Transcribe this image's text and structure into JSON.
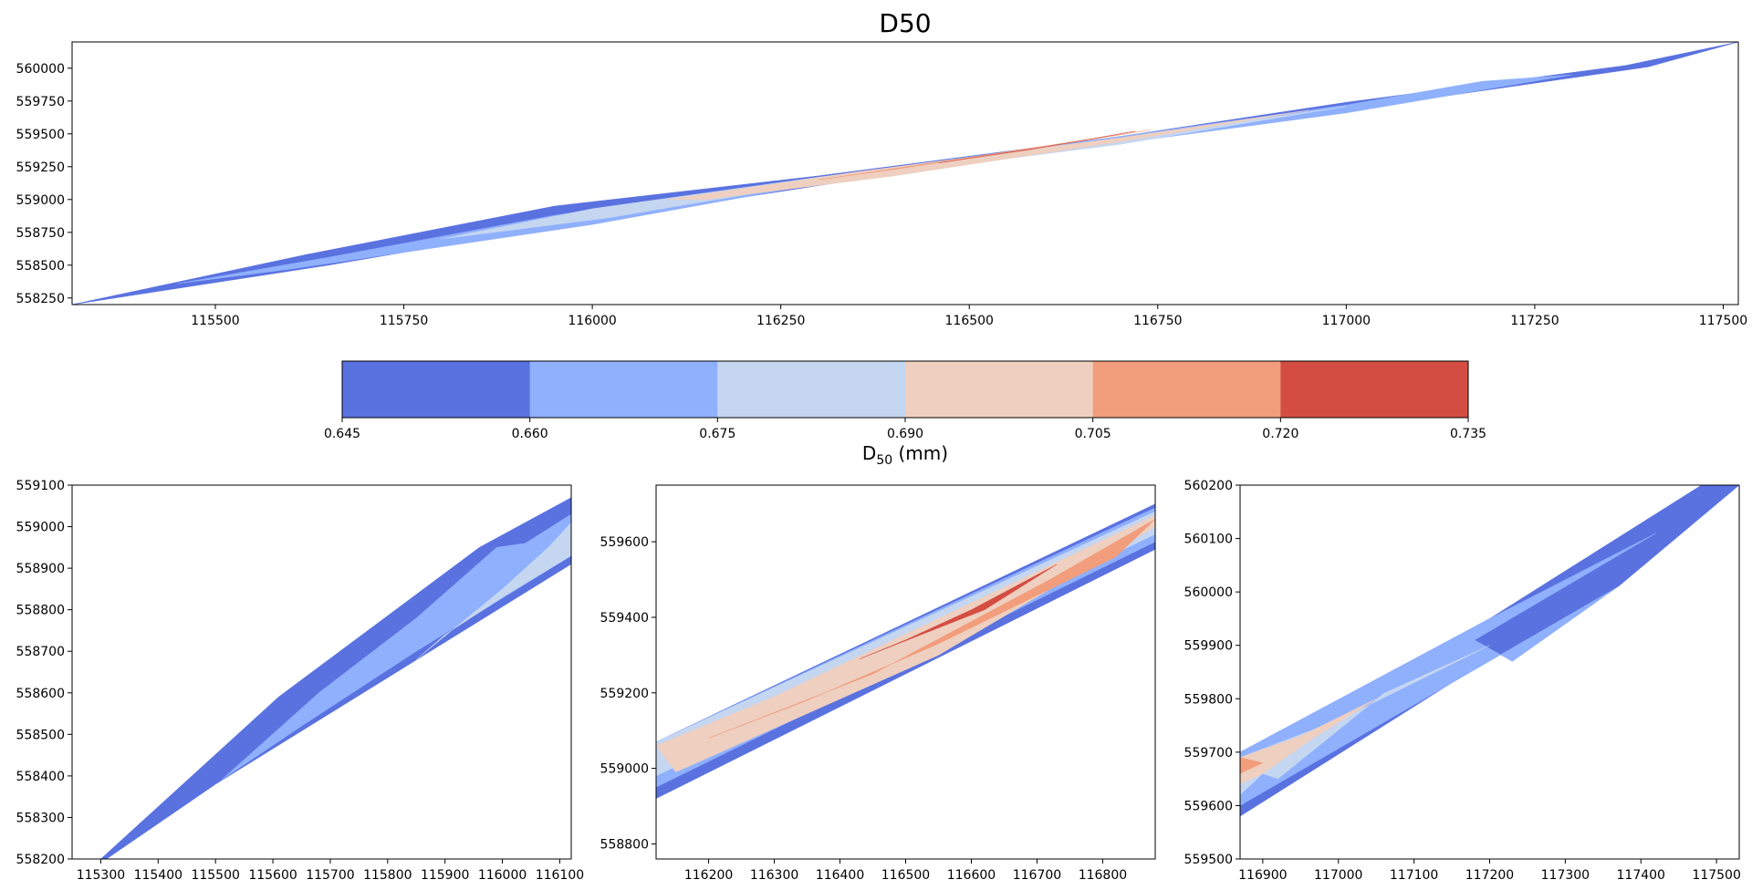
{
  "colors": {
    "levels": [
      "#5a72e0",
      "#8fb0fd",
      "#c5d6f1",
      "#eecfc0",
      "#f29d7b",
      "#d44d42"
    ]
  },
  "chart_data": [
    {
      "type": "contour",
      "title": "D50",
      "xlim": [
        115310,
        117520
      ],
      "ylim": [
        558200,
        560200
      ],
      "xticks": [
        "115500",
        "115750",
        "116000",
        "116250",
        "116500",
        "116750",
        "117000",
        "117250",
        "117500"
      ],
      "yticks": [
        "558250",
        "558500",
        "558750",
        "559000",
        "559250",
        "559500",
        "559750",
        "560000"
      ],
      "polygons": [
        {
          "level": 0,
          "points": [
            [
              115310,
              558200
            ],
            [
              115620,
              558580
            ],
            [
              115950,
              558950
            ],
            [
              116300,
              559180
            ],
            [
              116700,
              559480
            ],
            [
              117000,
              559740
            ],
            [
              117370,
              560020
            ],
            [
              117520,
              560200
            ],
            [
              117400,
              560010
            ],
            [
              117000,
              559680
            ],
            [
              116650,
              559410
            ],
            [
              116350,
              559150
            ],
            [
              116000,
              558840
            ],
            [
              115650,
              558500
            ]
          ]
        },
        {
          "level": 1,
          "points": [
            [
              115450,
              558360
            ],
            [
              115650,
              558560
            ],
            [
              115950,
              558880
            ],
            [
              116250,
              559130
            ],
            [
              116650,
              559440
            ],
            [
              117000,
              559720
            ],
            [
              117180,
              559900
            ],
            [
              117300,
              559950
            ],
            [
              117000,
              559660
            ],
            [
              116650,
              559390
            ],
            [
              116300,
              559120
            ],
            [
              116000,
              558810
            ],
            [
              115600,
              558470
            ]
          ]
        },
        {
          "level": 2,
          "points": [
            [
              115800,
              558700
            ],
            [
              116000,
              558930
            ],
            [
              116300,
              559170
            ],
            [
              116700,
              559460
            ],
            [
              117000,
              559710
            ],
            [
              116700,
              559420
            ],
            [
              116300,
              559130
            ],
            [
              116020,
              558860
            ]
          ]
        },
        {
          "level": 3,
          "points": [
            [
              116100,
              559000
            ],
            [
              116350,
              559210
            ],
            [
              116700,
              559470
            ],
            [
              116950,
              559680
            ],
            [
              116700,
              559440
            ],
            [
              116400,
              559180
            ],
            [
              116150,
              559000
            ]
          ]
        },
        {
          "level": 4,
          "points": [
            [
              116300,
              559150
            ],
            [
              116500,
              559320
            ],
            [
              116740,
              559530
            ],
            [
              116600,
              559400
            ],
            [
              116400,
              559230
            ]
          ]
        },
        {
          "level": 5,
          "points": [
            [
              116460,
              559280
            ],
            [
              116600,
              559400
            ],
            [
              116720,
              559520
            ],
            [
              116580,
              559380
            ]
          ]
        }
      ]
    },
    {
      "type": "colorbar",
      "label": "D",
      "label_sub": "50",
      "label_unit": " (mm)",
      "ticks": [
        "0.645",
        "0.660",
        "0.675",
        "0.690",
        "0.705",
        "0.720",
        "0.735"
      ]
    },
    {
      "type": "contour",
      "xlim": [
        115250,
        116120
      ],
      "ylim": [
        558200,
        559100
      ],
      "xticks": [
        "115300",
        "115400",
        "115500",
        "115600",
        "115700",
        "115800",
        "115900",
        "116000",
        "116100"
      ],
      "yticks": [
        "558200",
        "558300",
        "558400",
        "558500",
        "558600",
        "558700",
        "558800",
        "558900",
        "559000",
        "559100"
      ],
      "polygons": [
        {
          "level": 0,
          "points": [
            [
              115300,
              558200
            ],
            [
              115610,
              558590
            ],
            [
              115960,
              558950
            ],
            [
              116120,
              559070
            ],
            [
              116120,
              558910
            ],
            [
              115500,
              558380
            ],
            [
              115310,
              558200
            ]
          ]
        },
        {
          "level": 1,
          "points": [
            [
              115510,
              558390
            ],
            [
              115680,
              558600
            ],
            [
              115850,
              558780
            ],
            [
              115990,
              558950
            ],
            [
              116040,
              558960
            ],
            [
              116120,
              559030
            ],
            [
              116120,
              558930
            ],
            [
              115850,
              558700
            ],
            [
              115650,
              558520
            ]
          ]
        },
        {
          "level": 2,
          "points": [
            [
              115850,
              558680
            ],
            [
              116000,
              558850
            ],
            [
              116080,
              558950
            ],
            [
              116120,
              559010
            ],
            [
              116120,
              558930
            ],
            [
              116000,
              558830
            ],
            [
              115900,
              558740
            ]
          ]
        }
      ]
    },
    {
      "type": "contour",
      "xlim": [
        116120,
        116880
      ],
      "ylim": [
        558760,
        559750
      ],
      "xticks": [
        "116200",
        "116300",
        "116400",
        "116500",
        "116600",
        "116700",
        "116800"
      ],
      "yticks": [
        "558800",
        "559000",
        "559200",
        "559400",
        "559600"
      ],
      "polygons": [
        {
          "level": 0,
          "points": [
            [
              116120,
              558920
            ],
            [
              116120,
              559070
            ],
            [
              116880,
              559700
            ],
            [
              116880,
              559580
            ]
          ]
        },
        {
          "level": 1,
          "points": [
            [
              116120,
              558950
            ],
            [
              116120,
              559070
            ],
            [
              116880,
              559690
            ],
            [
              116880,
              559600
            ]
          ]
        },
        {
          "level": 2,
          "points": [
            [
              116120,
              558980
            ],
            [
              116120,
              559070
            ],
            [
              116880,
              559680
            ],
            [
              116880,
              559620
            ]
          ]
        },
        {
          "level": 3,
          "points": [
            [
              116150,
              558990
            ],
            [
              116120,
              559060
            ],
            [
              116300,
              559190
            ],
            [
              116880,
              559670
            ],
            [
              116880,
              559640
            ],
            [
              116550,
              559300
            ]
          ]
        },
        {
          "level": 4,
          "points": [
            [
              116200,
              559080
            ],
            [
              116450,
              559250
            ],
            [
              116720,
              559500
            ],
            [
              116880,
              559660
            ],
            [
              116820,
              559560
            ],
            [
              116550,
              559330
            ],
            [
              116350,
              559180
            ]
          ]
        },
        {
          "level": 5,
          "points": [
            [
              116430,
              559290
            ],
            [
              116620,
              559420
            ],
            [
              116730,
              559540
            ],
            [
              116600,
              559420
            ],
            [
              116500,
              559340
            ]
          ]
        }
      ]
    },
    {
      "type": "contour",
      "xlim": [
        116870,
        117530
      ],
      "ylim": [
        559500,
        560200
      ],
      "xticks": [
        "116900",
        "117000",
        "117100",
        "117200",
        "117300",
        "117400",
        "117500"
      ],
      "yticks": [
        "559500",
        "559600",
        "559700",
        "559800",
        "559900",
        "560000",
        "560100",
        "560200"
      ],
      "polygons": [
        {
          "level": 0,
          "points": [
            [
              116870,
              559580
            ],
            [
              116870,
              559700
            ],
            [
              117200,
              559950
            ],
            [
              117480,
              560200
            ],
            [
              117530,
              560200
            ],
            [
              117370,
              560010
            ],
            [
              117150,
              559830
            ]
          ]
        },
        {
          "level": 1,
          "points": [
            [
              116870,
              559600
            ],
            [
              116870,
              559700
            ],
            [
              117200,
              559950
            ],
            [
              117420,
              560110
            ],
            [
              117180,
              559910
            ],
            [
              117230,
              559870
            ],
            [
              117370,
              560010
            ]
          ]
        },
        {
          "level": 2,
          "points": [
            [
              116870,
              559620
            ],
            [
              116870,
              559690
            ],
            [
              117000,
              559760
            ],
            [
              117100,
              559830
            ],
            [
              117200,
              559900
            ],
            [
              117060,
              559810
            ],
            [
              116920,
              559650
            ],
            [
              116900,
              559660
            ]
          ]
        },
        {
          "level": 3,
          "points": [
            [
              116870,
              559640
            ],
            [
              116870,
              559690
            ],
            [
              116950,
              559730
            ],
            [
              117050,
              559800
            ],
            [
              116960,
              559720
            ],
            [
              116900,
              559660
            ]
          ]
        },
        {
          "level": 4,
          "points": [
            [
              116870,
              559660
            ],
            [
              116870,
              559690
            ],
            [
              116900,
              559680
            ]
          ]
        }
      ]
    }
  ]
}
